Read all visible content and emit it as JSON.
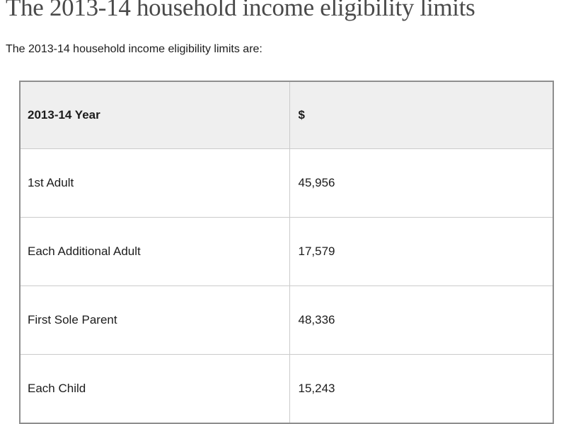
{
  "page": {
    "title": "The 2013-14 household income eligibility limits",
    "intro": "The 2013-14 household income eligibility limits are:"
  },
  "table": {
    "columns": [
      {
        "label": "2013-14 Year"
      },
      {
        "label": "$"
      }
    ],
    "rows": [
      {
        "label": "1st Adult",
        "value": "45,956"
      },
      {
        "label": "Each Additional Adult",
        "value": "17,579"
      },
      {
        "label": "First Sole Parent",
        "value": "48,336"
      },
      {
        "label": "Each Child",
        "value": "15,243"
      }
    ]
  },
  "colors": {
    "heading_text": "#4a4a4a",
    "body_text": "#1c1c1c",
    "table_header_bg": "#efefef",
    "table_outer_border": "#8e8e8e",
    "table_inner_border": "#cbcbcb"
  }
}
